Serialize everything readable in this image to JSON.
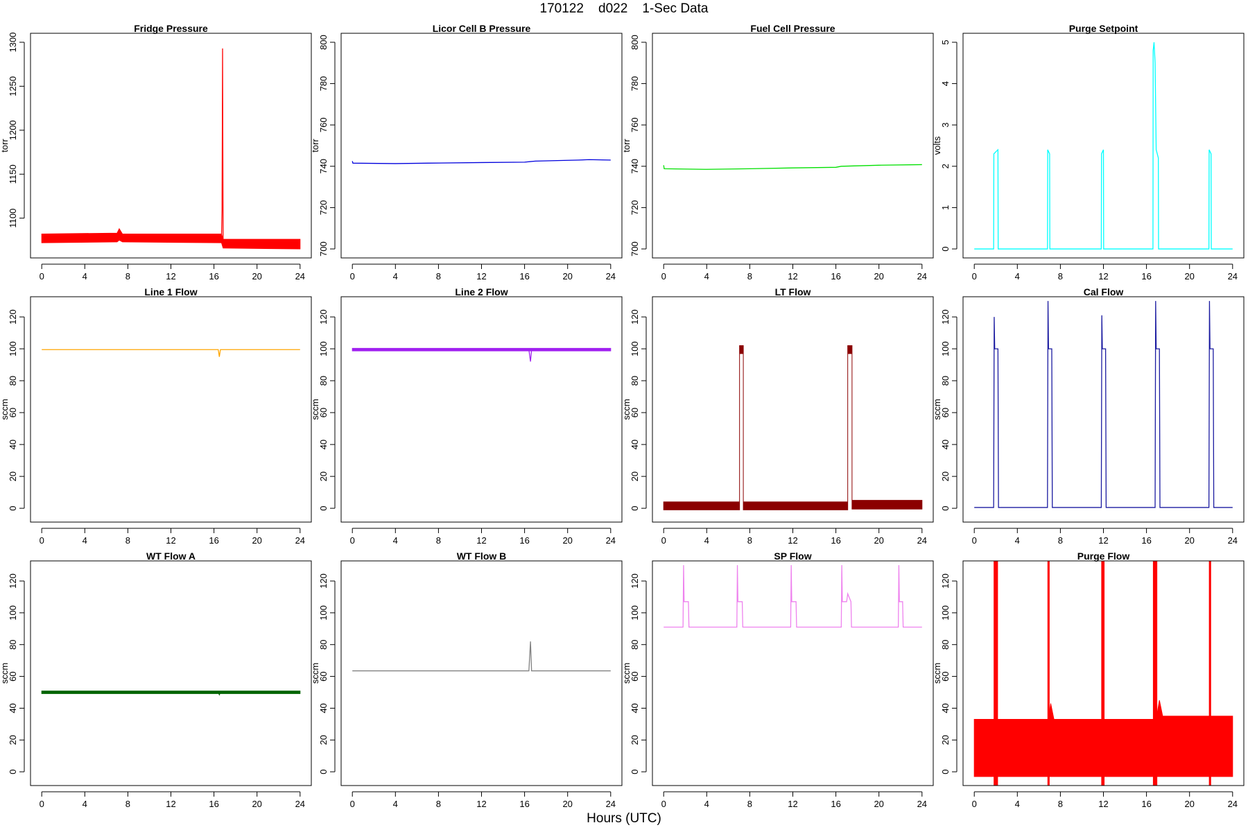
{
  "page": {
    "title": "170122    d022    1-Sec Data",
    "xaxis_title": "Hours (UTC)"
  },
  "chart_data": [
    {
      "type": "line",
      "title": "Fridge Pressure",
      "ylabel": "torr",
      "color": "#ff0000",
      "xlim": [
        0,
        24
      ],
      "ylim": [
        1065,
        1300
      ],
      "xticks": [
        0,
        4,
        8,
        12,
        16,
        20,
        24
      ],
      "yticks": [
        1100,
        1150,
        1200,
        1250,
        1300
      ],
      "band": [
        [
          0,
          1072,
          1082
        ],
        [
          7,
          1073,
          1083
        ],
        [
          7.2,
          1075,
          1088
        ],
        [
          7.5,
          1073,
          1082
        ],
        [
          16.7,
          1072,
          1082
        ],
        [
          16.85,
          1066,
          1076
        ],
        [
          24,
          1065,
          1076
        ]
      ],
      "line": [
        [
          16.7,
          1078
        ],
        [
          16.75,
          1110
        ],
        [
          16.8,
          1293
        ],
        [
          16.85,
          1072
        ],
        [
          16.95,
          1068
        ]
      ]
    },
    {
      "type": "line",
      "title": "Licor Cell B Pressure",
      "ylabel": "torr",
      "color": "#0000dd",
      "xlim": [
        0,
        24
      ],
      "ylim": [
        700,
        800
      ],
      "xticks": [
        0,
        4,
        8,
        12,
        16,
        20,
        24
      ],
      "yticks": [
        700,
        720,
        740,
        760,
        780,
        800
      ],
      "line": [
        [
          0,
          742.5
        ],
        [
          0.05,
          741.5
        ],
        [
          4,
          741.3
        ],
        [
          7,
          741.5
        ],
        [
          12,
          741.8
        ],
        [
          16,
          742.0
        ],
        [
          17,
          742.5
        ],
        [
          21,
          743.0
        ],
        [
          22,
          743.2
        ],
        [
          24,
          743.0
        ]
      ]
    },
    {
      "type": "line",
      "title": "Fuel Cell Pressure",
      "ylabel": "torr",
      "color": "#00e000",
      "xlim": [
        0,
        24
      ],
      "ylim": [
        700,
        800
      ],
      "xticks": [
        0,
        4,
        8,
        12,
        16,
        20,
        24
      ],
      "yticks": [
        700,
        720,
        740,
        760,
        780,
        800
      ],
      "line": [
        [
          0,
          740.5
        ],
        [
          0.05,
          738.8
        ],
        [
          4,
          738.5
        ],
        [
          8,
          738.8
        ],
        [
          12,
          739.2
        ],
        [
          16,
          739.5
        ],
        [
          16.5,
          740.0
        ],
        [
          20,
          740.5
        ],
        [
          24,
          740.8
        ]
      ]
    },
    {
      "type": "line",
      "title": "Purge Setpoint",
      "ylabel": "volts",
      "color": "#00ffff",
      "xlim": [
        0,
        24
      ],
      "ylim": [
        0,
        5
      ],
      "xticks": [
        0,
        4,
        8,
        12,
        16,
        20,
        24
      ],
      "yticks": [
        0,
        1,
        2,
        3,
        4,
        5
      ],
      "line": [
        [
          0,
          0
        ],
        [
          1.8,
          0
        ],
        [
          1.82,
          2.3
        ],
        [
          2.0,
          2.35
        ],
        [
          2.2,
          2.4
        ],
        [
          2.22,
          0
        ],
        [
          6.8,
          0
        ],
        [
          6.82,
          2.4
        ],
        [
          7.0,
          2.3
        ],
        [
          7.02,
          0
        ],
        [
          11.8,
          0
        ],
        [
          11.82,
          2.3
        ],
        [
          12.0,
          2.4
        ],
        [
          12.02,
          0
        ],
        [
          16.6,
          0
        ],
        [
          16.62,
          4.8
        ],
        [
          16.7,
          5.0
        ],
        [
          16.8,
          4.5
        ],
        [
          16.9,
          2.4
        ],
        [
          17.1,
          2.2
        ],
        [
          17.12,
          0
        ],
        [
          21.8,
          0
        ],
        [
          21.82,
          2.4
        ],
        [
          22.0,
          2.3
        ],
        [
          22.02,
          0
        ],
        [
          24,
          0
        ]
      ]
    },
    {
      "type": "line",
      "title": "Line 1 Flow",
      "ylabel": "sccm",
      "color": "#ffa500",
      "xlim": [
        0,
        24
      ],
      "ylim": [
        -3,
        127
      ],
      "xticks": [
        0,
        4,
        8,
        12,
        16,
        20,
        24
      ],
      "yticks": [
        0,
        20,
        40,
        60,
        80,
        100,
        120
      ],
      "line": [
        [
          0,
          99.5
        ],
        [
          16.4,
          99.5
        ],
        [
          16.5,
          95
        ],
        [
          16.6,
          99.5
        ],
        [
          24,
          99.5
        ]
      ]
    },
    {
      "type": "line",
      "title": "Line 2 Flow",
      "ylabel": "sccm",
      "color": "#a020f0",
      "xlim": [
        0,
        24
      ],
      "ylim": [
        -3,
        127
      ],
      "xticks": [
        0,
        4,
        8,
        12,
        16,
        20,
        24
      ],
      "yticks": [
        0,
        20,
        40,
        60,
        80,
        100,
        120
      ],
      "band": [
        [
          0,
          98.7,
          100.3
        ],
        [
          24,
          98.7,
          100.3
        ]
      ],
      "line": [
        [
          16.4,
          99.5
        ],
        [
          16.55,
          92
        ],
        [
          16.65,
          99.5
        ]
      ]
    },
    {
      "type": "line",
      "title": "LT Flow",
      "ylabel": "sccm",
      "color": "#8b0000",
      "xlim": [
        0,
        24
      ],
      "ylim": [
        -3,
        127
      ],
      "xticks": [
        0,
        4,
        8,
        12,
        16,
        20,
        24
      ],
      "yticks": [
        0,
        20,
        40,
        60,
        80,
        100,
        120
      ],
      "band": [
        [
          0,
          -1,
          4
        ],
        [
          7.05,
          -1,
          4
        ],
        [
          7.05,
          97,
          102
        ],
        [
          7.4,
          97,
          102
        ],
        [
          7.4,
          -1,
          4
        ],
        [
          17.1,
          -1,
          4
        ],
        [
          17.1,
          97,
          102
        ],
        [
          17.5,
          97,
          102
        ],
        [
          17.5,
          -0.5,
          5
        ],
        [
          24,
          -0.5,
          5
        ]
      ]
    },
    {
      "type": "line",
      "title": "Cal Flow",
      "ylabel": "sccm",
      "color": "#1a1aa0",
      "xlim": [
        0,
        24
      ],
      "ylim": [
        -3,
        127
      ],
      "xticks": [
        0,
        4,
        8,
        12,
        16,
        20,
        24
      ],
      "yticks": [
        0,
        20,
        40,
        60,
        80,
        100,
        120
      ],
      "line": [
        [
          0,
          0.5
        ],
        [
          1.8,
          0.5
        ],
        [
          1.85,
          120
        ],
        [
          1.9,
          100
        ],
        [
          2.2,
          100
        ],
        [
          2.25,
          0.5
        ],
        [
          6.8,
          0.5
        ],
        [
          6.85,
          130
        ],
        [
          6.9,
          100
        ],
        [
          7.2,
          100
        ],
        [
          7.25,
          0.5
        ],
        [
          11.8,
          0.5
        ],
        [
          11.85,
          121
        ],
        [
          11.9,
          100
        ],
        [
          12.2,
          100
        ],
        [
          12.25,
          0.5
        ],
        [
          16.8,
          0.5
        ],
        [
          16.85,
          130
        ],
        [
          16.9,
          100
        ],
        [
          17.2,
          100
        ],
        [
          17.25,
          0.5
        ],
        [
          21.8,
          0.5
        ],
        [
          21.85,
          130
        ],
        [
          21.9,
          100
        ],
        [
          22.2,
          100
        ],
        [
          22.25,
          0.5
        ],
        [
          24,
          0.5
        ]
      ]
    },
    {
      "type": "line",
      "title": "WT Flow A",
      "ylabel": "sccm",
      "color": "#006400",
      "xlim": [
        0,
        24
      ],
      "ylim": [
        -3,
        127
      ],
      "xticks": [
        0,
        4,
        8,
        12,
        16,
        20,
        24
      ],
      "yticks": [
        0,
        20,
        40,
        60,
        80,
        100,
        120
      ],
      "band": [
        [
          0,
          49.2,
          50.8
        ],
        [
          24,
          49.2,
          50.8
        ]
      ],
      "line": [
        [
          16.4,
          50
        ],
        [
          16.5,
          48.5
        ],
        [
          16.6,
          50
        ]
      ]
    },
    {
      "type": "line",
      "title": "WT Flow B",
      "ylabel": "sccm",
      "color": "#808080",
      "xlim": [
        0,
        24
      ],
      "ylim": [
        -3,
        127
      ],
      "xticks": [
        0,
        4,
        8,
        12,
        16,
        20,
        24
      ],
      "yticks": [
        0,
        20,
        40,
        60,
        80,
        100,
        120
      ],
      "line": [
        [
          0,
          63.5
        ],
        [
          16.4,
          63.5
        ],
        [
          16.55,
          82
        ],
        [
          16.65,
          63.5
        ],
        [
          24,
          63.5
        ]
      ]
    },
    {
      "type": "line",
      "title": "SP Flow",
      "ylabel": "sccm",
      "color": "#ee82ee",
      "xlim": [
        0,
        24
      ],
      "ylim": [
        -3,
        127
      ],
      "xticks": [
        0,
        4,
        8,
        12,
        16,
        20,
        24
      ],
      "yticks": [
        0,
        20,
        40,
        60,
        80,
        100,
        120
      ],
      "line": [
        [
          0,
          91
        ],
        [
          1.8,
          91
        ],
        [
          1.85,
          130
        ],
        [
          1.9,
          107
        ],
        [
          2.3,
          107
        ],
        [
          2.35,
          91
        ],
        [
          6.8,
          91
        ],
        [
          6.85,
          130
        ],
        [
          6.9,
          107
        ],
        [
          7.3,
          107
        ],
        [
          7.35,
          91
        ],
        [
          11.8,
          91
        ],
        [
          11.85,
          130
        ],
        [
          11.9,
          107
        ],
        [
          12.3,
          107
        ],
        [
          12.35,
          91
        ],
        [
          16.5,
          91
        ],
        [
          16.55,
          130
        ],
        [
          16.6,
          107
        ],
        [
          17.0,
          107
        ],
        [
          17.1,
          112
        ],
        [
          17.4,
          107
        ],
        [
          17.45,
          91
        ],
        [
          21.8,
          91
        ],
        [
          21.85,
          130
        ],
        [
          21.9,
          107
        ],
        [
          22.2,
          107
        ],
        [
          22.25,
          91
        ],
        [
          24,
          91
        ]
      ]
    },
    {
      "type": "line",
      "title": "Purge Flow",
      "ylabel": "sccm",
      "color": "#ff0000",
      "xlim": [
        0,
        24
      ],
      "ylim": [
        -3,
        127
      ],
      "xticks": [
        0,
        4,
        8,
        12,
        16,
        20,
        24
      ],
      "yticks": [
        0,
        20,
        40,
        60,
        80,
        100,
        120
      ],
      "band": [
        [
          0,
          -3,
          33
        ],
        [
          6.9,
          -3,
          33
        ],
        [
          7.1,
          -3,
          43
        ],
        [
          7.4,
          -3,
          33
        ],
        [
          16.9,
          -3,
          33
        ],
        [
          17.2,
          -3,
          45
        ],
        [
          17.5,
          -3,
          35
        ],
        [
          24,
          -3,
          35
        ]
      ],
      "spikes": [
        [
          1.8,
          2.2
        ],
        [
          6.8,
          7.0
        ],
        [
          11.8,
          12.1
        ],
        [
          16.6,
          17.0
        ],
        [
          21.8,
          22.0
        ]
      ]
    }
  ]
}
